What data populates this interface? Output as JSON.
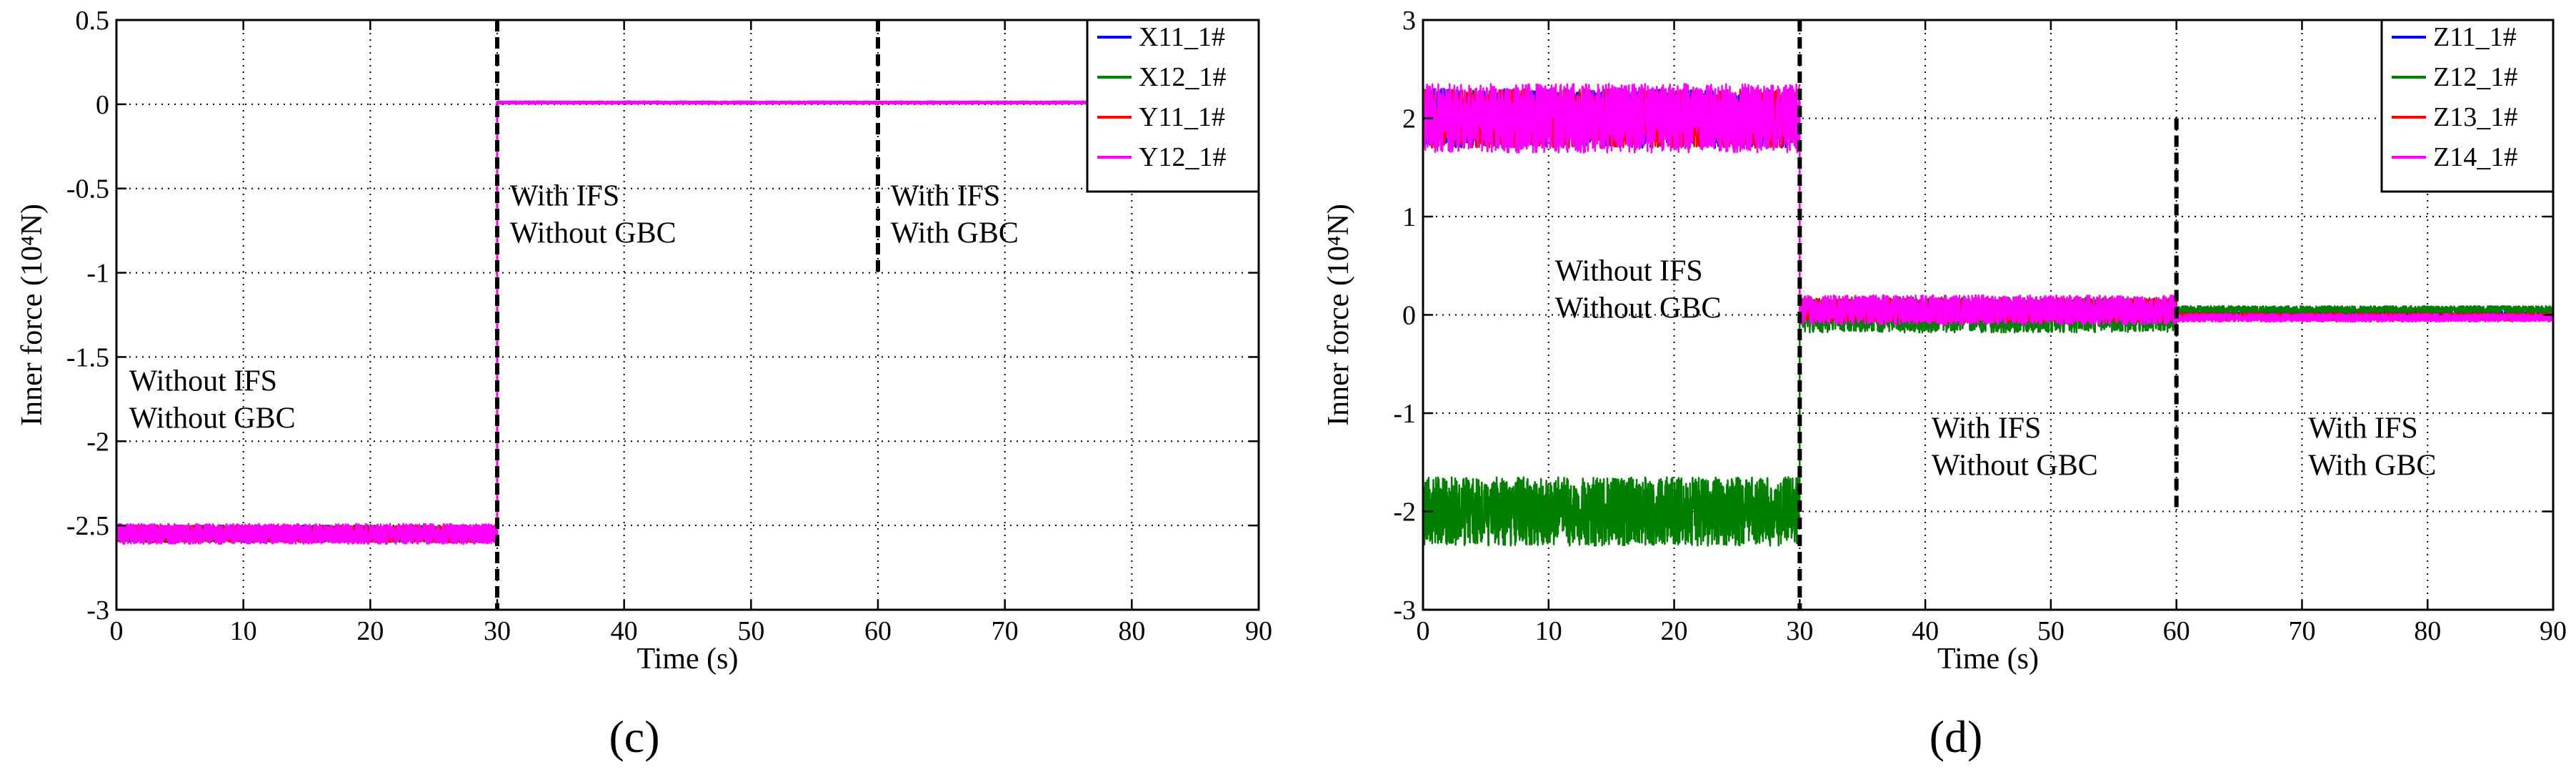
{
  "chart_data": [
    {
      "id": "c",
      "type": "line",
      "panel_label": "(c)",
      "xlabel": "Time (s)",
      "ylabel": "Inner force (10⁴N)",
      "xlim": [
        0,
        90
      ],
      "ylim": [
        -3,
        0.5
      ],
      "xticks": [
        0,
        10,
        20,
        30,
        40,
        50,
        60,
        70,
        80,
        90
      ],
      "yticks": [
        0.5,
        0,
        -0.5,
        -1,
        -1.5,
        -2,
        -2.5,
        -3
      ],
      "ytick_labels": [
        "0.5",
        "0",
        "-0.5",
        "-1",
        "-1.5",
        "-2",
        "-2.5",
        "-3"
      ],
      "grid": "dotted",
      "legend_position": "top-right",
      "series": [
        {
          "name": "X11_1#",
          "color": "#0000ff",
          "segments": [
            {
              "x0": 0,
              "x1": 30,
              "level": -2.55,
              "noise": 0.05
            },
            {
              "x0": 30,
              "x1": 90,
              "level": 0.01,
              "noise": 0.005
            }
          ]
        },
        {
          "name": "X12_1#",
          "color": "#007f00",
          "segments": [
            {
              "x0": 0,
              "x1": 30,
              "level": -2.55,
              "noise": 0.05
            },
            {
              "x0": 30,
              "x1": 90,
              "level": 0.01,
              "noise": 0.005
            }
          ]
        },
        {
          "name": "Y11_1#",
          "color": "#ff0000",
          "segments": [
            {
              "x0": 0,
              "x1": 30,
              "level": -2.55,
              "noise": 0.05
            },
            {
              "x0": 30,
              "x1": 90,
              "level": 0.01,
              "noise": 0.005
            }
          ]
        },
        {
          "name": "Y12_1#",
          "color": "#ff00ff",
          "segments": [
            {
              "x0": 0,
              "x1": 30,
              "level": -2.55,
              "noise": 0.06
            },
            {
              "x0": 30,
              "x1": 90,
              "level": 0.01,
              "noise": 0.008
            }
          ]
        }
      ],
      "dividers": [
        {
          "x": 30,
          "y_from": -3,
          "y_to": 0.5
        },
        {
          "x": 60,
          "y_from": -1,
          "y_to": 0.5
        }
      ],
      "annotations": [
        {
          "lines": [
            "Without IFS",
            "Without GBC"
          ],
          "x": 1,
          "y": -1.7
        },
        {
          "lines": [
            "With IFS",
            "Without GBC"
          ],
          "x": 31,
          "y": -0.6
        },
        {
          "lines": [
            "With IFS",
            "With GBC"
          ],
          "x": 61,
          "y": -0.6
        }
      ]
    },
    {
      "id": "d",
      "type": "line",
      "panel_label": "(d)",
      "xlabel": "Time (s)",
      "ylabel": "Inner force (10⁴N)",
      "xlim": [
        0,
        90
      ],
      "ylim": [
        -3,
        3
      ],
      "xticks": [
        0,
        10,
        20,
        30,
        40,
        50,
        60,
        70,
        80,
        90
      ],
      "yticks": [
        3,
        2,
        1,
        0,
        -1,
        -2,
        -3
      ],
      "ytick_labels": [
        "3",
        "2",
        "1",
        "0",
        "-1",
        "-2",
        "-3"
      ],
      "grid": "dotted",
      "legend_position": "top-right",
      "series": [
        {
          "name": "Z11_1#",
          "color": "#0000ff",
          "segments": [
            {
              "x0": 0,
              "x1": 30,
              "level": 2.0,
              "noise": 0.3
            },
            {
              "x0": 30,
              "x1": 60,
              "level": 0.05,
              "noise": 0.1
            },
            {
              "x0": 60,
              "x1": 90,
              "level": 0.0,
              "noise": 0.04
            }
          ]
        },
        {
          "name": "Z12_1#",
          "color": "#007f00",
          "segments": [
            {
              "x0": 0,
              "x1": 30,
              "level": -2.0,
              "noise": 0.35
            },
            {
              "x0": 30,
              "x1": 60,
              "level": 0.0,
              "noise": 0.18
            },
            {
              "x0": 60,
              "x1": 90,
              "level": 0.05,
              "noise": 0.04
            }
          ]
        },
        {
          "name": "Z13_1#",
          "color": "#ff0000",
          "segments": [
            {
              "x0": 0,
              "x1": 30,
              "level": 2.0,
              "noise": 0.3
            },
            {
              "x0": 30,
              "x1": 60,
              "level": 0.05,
              "noise": 0.12
            },
            {
              "x0": 60,
              "x1": 90,
              "level": -0.02,
              "noise": 0.04
            }
          ]
        },
        {
          "name": "Z14_1#",
          "color": "#ff00ff",
          "segments": [
            {
              "x0": 0,
              "x1": 30,
              "level": 2.0,
              "noise": 0.35
            },
            {
              "x0": 30,
              "x1": 60,
              "level": 0.05,
              "noise": 0.15
            },
            {
              "x0": 60,
              "x1": 90,
              "level": -0.03,
              "noise": 0.04
            }
          ]
        }
      ],
      "dividers": [
        {
          "x": 30,
          "y_from": -3,
          "y_to": 3
        },
        {
          "x": 60,
          "y_from": -2,
          "y_to": 2
        }
      ],
      "annotations": [
        {
          "lines": [
            "Without IFS",
            "Without GBC"
          ],
          "x": 10.5,
          "y": 0.35
        },
        {
          "lines": [
            "With IFS",
            "Without GBC"
          ],
          "x": 40.5,
          "y": -1.25
        },
        {
          "lines": [
            "With IFS",
            "With GBC"
          ],
          "x": 70.5,
          "y": -1.25
        }
      ]
    }
  ]
}
